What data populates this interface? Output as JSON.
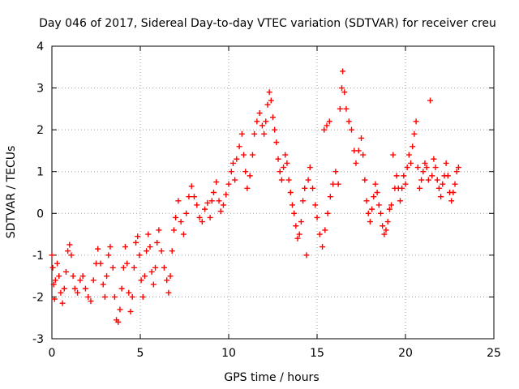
{
  "colors": {
    "series": "#ff0000",
    "grid": "#a0a0a0",
    "axis": "#000000",
    "background": "#ffffff"
  },
  "chart_data": {
    "type": "scatter",
    "title": "Day 046 of 2017, Sidereal Day-to-day VTEC variation (SDTVAR) for receiver creu",
    "xlabel": "GPS time / hours",
    "ylabel": "SDTVAR / TECUs",
    "xlim": [
      0,
      25
    ],
    "ylim": [
      -3,
      4
    ],
    "xticks": [
      0,
      5,
      10,
      15,
      20,
      25
    ],
    "yticks": [
      -3,
      -2,
      -1,
      0,
      1,
      2,
      3,
      4
    ],
    "grid": true,
    "marker": "+",
    "series": [
      {
        "name": "SDTVAR",
        "points": [
          [
            0.0,
            -1.0
          ],
          [
            0.05,
            -1.3
          ],
          [
            0.1,
            -1.7
          ],
          [
            0.15,
            -2.05
          ],
          [
            0.2,
            -1.6
          ],
          [
            0.3,
            -1.2
          ],
          [
            0.4,
            -1.5
          ],
          [
            0.5,
            -1.9
          ],
          [
            0.6,
            -2.15
          ],
          [
            0.7,
            -1.8
          ],
          [
            0.8,
            -1.4
          ],
          [
            0.9,
            -0.9
          ],
          [
            1.0,
            -0.75
          ],
          [
            1.1,
            -1.0
          ],
          [
            1.2,
            -1.5
          ],
          [
            1.3,
            -1.8
          ],
          [
            1.45,
            -1.9
          ],
          [
            1.6,
            -1.6
          ],
          [
            1.75,
            -1.5
          ],
          [
            1.9,
            -1.8
          ],
          [
            2.05,
            -2.0
          ],
          [
            2.2,
            -2.1
          ],
          [
            2.35,
            -1.6
          ],
          [
            2.5,
            -1.2
          ],
          [
            2.6,
            -0.85
          ],
          [
            2.75,
            -1.2
          ],
          [
            2.9,
            -1.7
          ],
          [
            3.0,
            -2.0
          ],
          [
            3.1,
            -1.5
          ],
          [
            3.2,
            -1.0
          ],
          [
            3.3,
            -0.8
          ],
          [
            3.45,
            -1.3
          ],
          [
            3.55,
            -2.0
          ],
          [
            3.65,
            -2.55
          ],
          [
            3.75,
            -2.6
          ],
          [
            3.85,
            -2.3
          ],
          [
            3.95,
            -1.8
          ],
          [
            4.05,
            -1.3
          ],
          [
            4.15,
            -0.8
          ],
          [
            4.25,
            -1.2
          ],
          [
            4.35,
            -1.9
          ],
          [
            4.45,
            -2.35
          ],
          [
            4.55,
            -2.0
          ],
          [
            4.65,
            -1.3
          ],
          [
            4.75,
            -0.7
          ],
          [
            4.85,
            -0.55
          ],
          [
            4.95,
            -1.0
          ],
          [
            5.05,
            -1.6
          ],
          [
            5.15,
            -2.0
          ],
          [
            5.25,
            -1.5
          ],
          [
            5.35,
            -0.9
          ],
          [
            5.45,
            -0.5
          ],
          [
            5.55,
            -0.8
          ],
          [
            5.65,
            -1.4
          ],
          [
            5.75,
            -1.7
          ],
          [
            5.85,
            -1.3
          ],
          [
            5.95,
            -0.7
          ],
          [
            6.05,
            -0.4
          ],
          [
            6.2,
            -0.9
          ],
          [
            6.35,
            -1.3
          ],
          [
            6.5,
            -1.6
          ],
          [
            6.6,
            -1.9
          ],
          [
            6.7,
            -1.5
          ],
          [
            6.8,
            -0.9
          ],
          [
            6.9,
            -0.4
          ],
          [
            7.0,
            -0.1
          ],
          [
            7.15,
            0.3
          ],
          [
            7.3,
            -0.2
          ],
          [
            7.45,
            -0.5
          ],
          [
            7.6,
            0.0
          ],
          [
            7.75,
            0.4
          ],
          [
            7.9,
            0.65
          ],
          [
            8.05,
            0.4
          ],
          [
            8.2,
            0.2
          ],
          [
            8.35,
            -0.1
          ],
          [
            8.5,
            -0.2
          ],
          [
            8.65,
            0.1
          ],
          [
            8.8,
            0.25
          ],
          [
            8.95,
            -0.1
          ],
          [
            9.05,
            0.3
          ],
          [
            9.15,
            0.5
          ],
          [
            9.3,
            0.75
          ],
          [
            9.45,
            0.3
          ],
          [
            9.55,
            0.05
          ],
          [
            9.7,
            0.2
          ],
          [
            9.85,
            0.45
          ],
          [
            10.0,
            0.7
          ],
          [
            10.15,
            1.0
          ],
          [
            10.25,
            1.2
          ],
          [
            10.35,
            0.8
          ],
          [
            10.45,
            1.3
          ],
          [
            10.6,
            1.6
          ],
          [
            10.75,
            1.9
          ],
          [
            10.85,
            1.4
          ],
          [
            10.95,
            1.0
          ],
          [
            11.05,
            0.6
          ],
          [
            11.2,
            0.9
          ],
          [
            11.35,
            1.4
          ],
          [
            11.45,
            1.9
          ],
          [
            11.6,
            2.2
          ],
          [
            11.75,
            2.4
          ],
          [
            11.9,
            2.1
          ],
          [
            12.0,
            1.9
          ],
          [
            12.1,
            2.2
          ],
          [
            12.2,
            2.6
          ],
          [
            12.3,
            2.9
          ],
          [
            12.4,
            2.7
          ],
          [
            12.5,
            2.3
          ],
          [
            12.6,
            2.0
          ],
          [
            12.7,
            1.7
          ],
          [
            12.8,
            1.3
          ],
          [
            12.9,
            1.0
          ],
          [
            13.0,
            0.8
          ],
          [
            13.1,
            1.1
          ],
          [
            13.2,
            1.4
          ],
          [
            13.3,
            1.2
          ],
          [
            13.4,
            0.8
          ],
          [
            13.5,
            0.5
          ],
          [
            13.6,
            0.2
          ],
          [
            13.7,
            0.0
          ],
          [
            13.8,
            -0.3
          ],
          [
            13.9,
            -0.6
          ],
          [
            14.0,
            -0.5
          ],
          [
            14.1,
            -0.2
          ],
          [
            14.2,
            0.3
          ],
          [
            14.3,
            0.6
          ],
          [
            14.4,
            -1.0
          ],
          [
            14.5,
            0.8
          ],
          [
            14.6,
            1.1
          ],
          [
            14.75,
            0.6
          ],
          [
            14.9,
            0.2
          ],
          [
            15.0,
            -0.1
          ],
          [
            15.15,
            -0.5
          ],
          [
            15.3,
            -0.8
          ],
          [
            15.45,
            -0.4
          ],
          [
            15.6,
            0.0
          ],
          [
            15.75,
            0.4
          ],
          [
            15.9,
            0.7
          ],
          [
            16.05,
            1.0
          ],
          [
            16.2,
            0.7
          ],
          [
            15.4,
            2.0
          ],
          [
            15.55,
            2.1
          ],
          [
            15.7,
            2.2
          ],
          [
            16.3,
            2.5
          ],
          [
            16.4,
            3.0
          ],
          [
            16.45,
            3.4
          ],
          [
            16.55,
            2.9
          ],
          [
            16.65,
            2.5
          ],
          [
            16.8,
            2.2
          ],
          [
            16.95,
            2.0
          ],
          [
            17.1,
            1.5
          ],
          [
            17.2,
            1.2
          ],
          [
            17.35,
            1.5
          ],
          [
            17.5,
            1.8
          ],
          [
            17.6,
            1.4
          ],
          [
            17.7,
            0.8
          ],
          [
            17.8,
            0.3
          ],
          [
            17.9,
            0.0
          ],
          [
            18.0,
            -0.2
          ],
          [
            18.1,
            0.1
          ],
          [
            18.2,
            0.4
          ],
          [
            18.3,
            0.7
          ],
          [
            18.4,
            0.5
          ],
          [
            18.5,
            0.2
          ],
          [
            18.6,
            0.0
          ],
          [
            18.7,
            -0.3
          ],
          [
            18.8,
            -0.5
          ],
          [
            18.9,
            -0.4
          ],
          [
            19.0,
            -0.2
          ],
          [
            19.1,
            0.1
          ],
          [
            19.2,
            0.2
          ],
          [
            19.3,
            1.4
          ],
          [
            19.4,
            0.6
          ],
          [
            19.5,
            0.9
          ],
          [
            19.6,
            0.6
          ],
          [
            19.7,
            0.3
          ],
          [
            19.8,
            0.6
          ],
          [
            19.9,
            0.9
          ],
          [
            20.0,
            0.7
          ],
          [
            20.1,
            1.1
          ],
          [
            20.2,
            1.4
          ],
          [
            20.3,
            1.2
          ],
          [
            20.4,
            1.6
          ],
          [
            20.5,
            1.9
          ],
          [
            20.6,
            2.2
          ],
          [
            20.7,
            1.1
          ],
          [
            20.8,
            0.6
          ],
          [
            20.9,
            0.8
          ],
          [
            21.0,
            1.0
          ],
          [
            21.1,
            1.2
          ],
          [
            21.2,
            1.1
          ],
          [
            21.3,
            0.8
          ],
          [
            21.4,
            2.7
          ],
          [
            21.5,
            0.9
          ],
          [
            21.6,
            1.3
          ],
          [
            21.7,
            1.1
          ],
          [
            21.8,
            0.8
          ],
          [
            21.9,
            0.6
          ],
          [
            22.0,
            0.4
          ],
          [
            22.1,
            0.7
          ],
          [
            22.2,
            0.9
          ],
          [
            22.3,
            1.2
          ],
          [
            22.4,
            0.9
          ],
          [
            22.5,
            0.5
          ],
          [
            22.6,
            0.3
          ],
          [
            22.7,
            0.5
          ],
          [
            22.8,
            0.7
          ],
          [
            22.9,
            1.0
          ],
          [
            23.0,
            1.1
          ]
        ]
      }
    ]
  }
}
